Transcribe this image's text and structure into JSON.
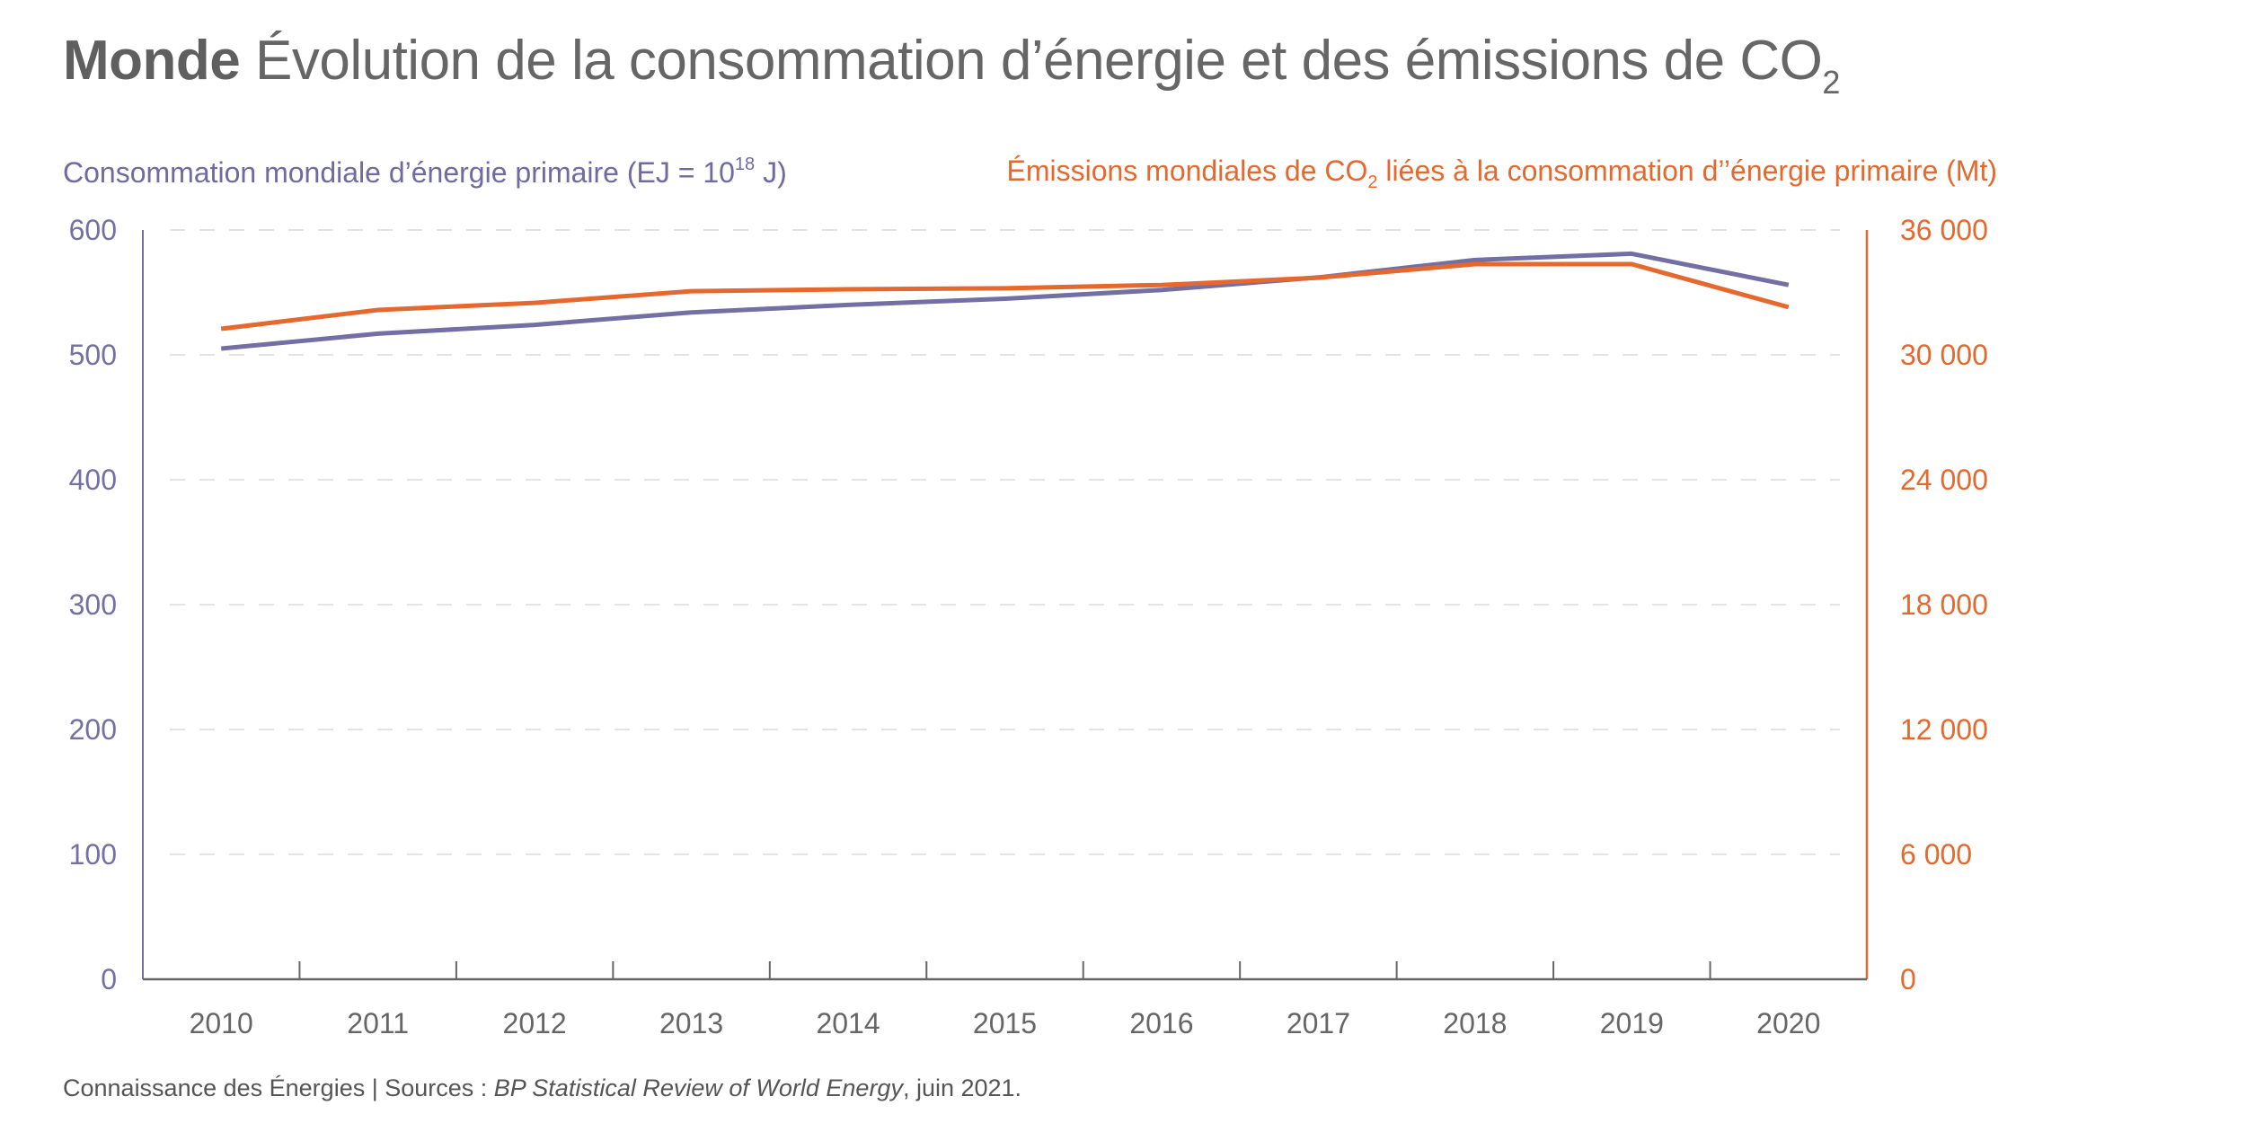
{
  "header": {
    "title_bold": "Monde",
    "title_rest": "Évolution de la consommation d’énergie et des émissions de CO",
    "title_sub": "2"
  },
  "footer": {
    "prefix": "Connaissance des Énergies | Sources : ",
    "source_italic": "BP Statistical Review of World Energy",
    "suffix": ", juin 2021."
  },
  "colors": {
    "energy": "#736ea3",
    "co2": "#e5692e",
    "grid": "#e3e3e3",
    "axis": "#666666"
  },
  "chart_data": {
    "type": "line",
    "title": "Monde Évolution de la consommation d’énergie et des émissions de CO2",
    "x": [
      "2010",
      "2011",
      "2012",
      "2013",
      "2014",
      "2015",
      "2016",
      "2017",
      "2018",
      "2019",
      "2020"
    ],
    "left_axis": {
      "label_main": "Consommation mondiale d’énergie primaire (EJ = 10",
      "label_sup": "18",
      "label_end": " J)",
      "ylim": [
        0,
        600
      ],
      "ticks": [
        0,
        100,
        200,
        300,
        400,
        500,
        600
      ],
      "tick_labels": [
        "0",
        "100",
        "200",
        "300",
        "400",
        "500",
        "600"
      ]
    },
    "right_axis": {
      "label_main": "Émissions mondiales de CO",
      "label_sub": "2",
      "label_end": " liées à la consommation d’’énergie primaire (Mt)",
      "ylim": [
        0,
        36000
      ],
      "ticks": [
        0,
        6000,
        12000,
        18000,
        24000,
        30000,
        36000
      ],
      "tick_labels": [
        "0",
        "6 000",
        "12 000",
        "18 000",
        "24 000",
        "30 000",
        "36 000"
      ]
    },
    "series": [
      {
        "name": "Consommation mondiale d’énergie primaire (EJ)",
        "axis": "left",
        "color": "#736ea3",
        "values": [
          505,
          517,
          524,
          534,
          540,
          545,
          552,
          562,
          576,
          581,
          556
        ]
      },
      {
        "name": "Émissions mondiales de CO2 (Mt)",
        "axis": "right",
        "color": "#e5692e",
        "values": [
          31250,
          32160,
          32500,
          33060,
          33150,
          33200,
          33360,
          33710,
          34360,
          34360,
          32290
        ]
      }
    ],
    "grid": true,
    "legend": "top (axis titles)"
  }
}
